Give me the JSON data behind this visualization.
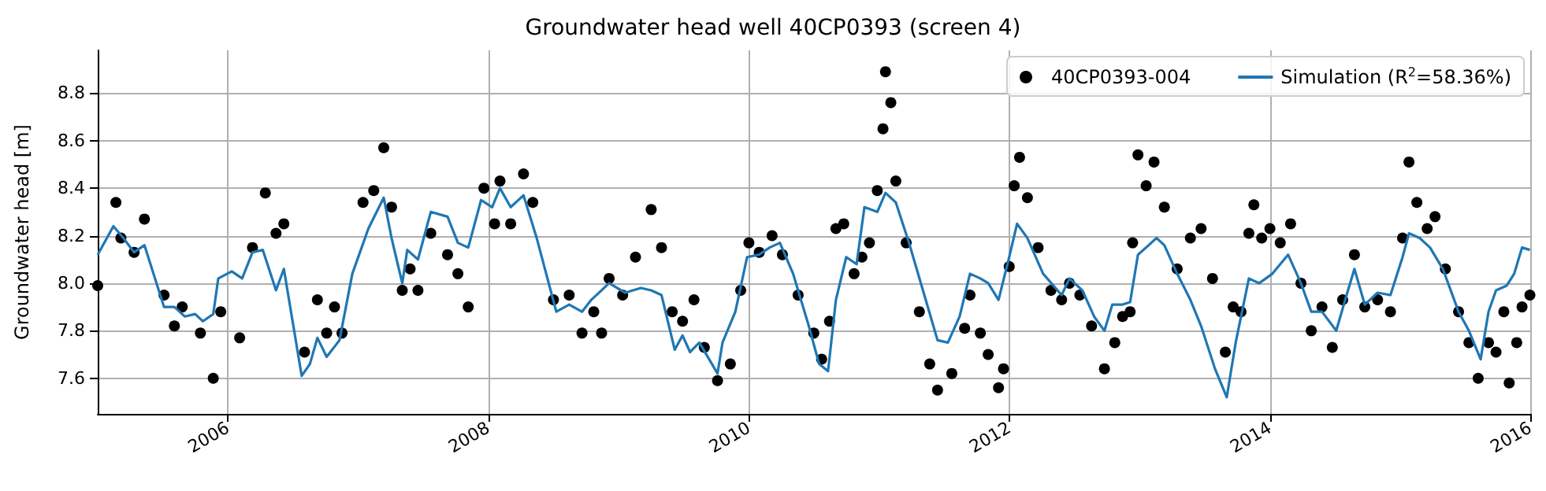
{
  "chart_data": {
    "type": "line",
    "title": "Groundwater head well 40CP0393 (screen 4)",
    "ylabel": "Groundwater head [m]",
    "xlim": [
      "2005",
      "2016"
    ],
    "xticks": [
      "2006",
      "2008",
      "2010",
      "2012",
      "2014",
      "2016"
    ],
    "ylim": [
      7.45,
      8.98
    ],
    "yticks": [
      7.6,
      7.8,
      {
        "value": 8,
        "label": "8.0"
      },
      8.2,
      8.4,
      8.6,
      8.8
    ],
    "grid": true,
    "legend": "top right",
    "series": [
      {
        "name": "40CP0393-004",
        "type": "scatter",
        "marker": "circle",
        "color": "#000000",
        "x": [
          "2005-01-01",
          "2005-02-21",
          "2005-03-07",
          "2005-04-13",
          "2005-05-12",
          "2005-07-06",
          "2005-08-04",
          "2005-08-26",
          "2005-10-16",
          "2005-11-21",
          "2005-12-12",
          "2006-02-03",
          "2006-03-11",
          "2006-04-16",
          "2006-05-16",
          "2006-06-07",
          "2006-08-04",
          "2006-09-09",
          "2006-10-05",
          "2006-10-27",
          "2006-11-17",
          "2007-01-15",
          "2007-02-14",
          "2007-03-14",
          "2007-04-05",
          "2007-05-05",
          "2007-05-27",
          "2007-06-18",
          "2007-07-24",
          "2007-09-09",
          "2007-10-08",
          "2007-11-06",
          "2007-12-20",
          "2008-01-19",
          "2008-02-03",
          "2008-03-04",
          "2008-04-09",
          "2008-05-05",
          "2008-07-02",
          "2008-08-15",
          "2008-09-20",
          "2008-10-23",
          "2008-11-14",
          "2008-12-05",
          "2009-01-12",
          "2009-02-17",
          "2009-04-02",
          "2009-05-01",
          "2009-05-31",
          "2009-06-29",
          "2009-07-31",
          "2009-08-29",
          "2009-10-05",
          "2009-11-10",
          "2009-12-09",
          "2010-01-01",
          "2010-01-30",
          "2010-03-07",
          "2010-04-05",
          "2010-05-19",
          "2010-07-02",
          "2010-07-24",
          "2010-08-15",
          "2010-09-02",
          "2010-09-24",
          "2010-10-23",
          "2010-11-14",
          "2010-12-05",
          "2010-12-27",
          "2011-01-12",
          "2011-01-19",
          "2011-02-03",
          "2011-02-17",
          "2011-03-18",
          "2011-04-24",
          "2011-05-23",
          "2011-06-14",
          "2011-07-24",
          "2011-08-29",
          "2011-09-13",
          "2011-10-12",
          "2011-11-03",
          "2011-12-02",
          "2011-12-16",
          "2012-01-01",
          "2012-01-15",
          "2012-01-30",
          "2012-02-21",
          "2012-03-22",
          "2012-04-27",
          "2012-05-27",
          "2012-06-18",
          "2012-07-17",
          "2012-08-19",
          "2012-09-24",
          "2012-10-23",
          "2012-11-14",
          "2012-12-05",
          "2012-12-12",
          "2012-12-27",
          "2013-01-19",
          "2013-02-10",
          "2013-03-11",
          "2013-04-16",
          "2013-05-23",
          "2013-06-22",
          "2013-07-24",
          "2013-08-29",
          "2013-09-20",
          "2013-10-12",
          "2013-11-03",
          "2013-11-17",
          "2013-12-09",
          "2014-01-01",
          "2014-01-30",
          "2014-02-28",
          "2014-03-29",
          "2014-04-27",
          "2014-05-27",
          "2014-06-25",
          "2014-07-24",
          "2014-08-26",
          "2014-09-24",
          "2014-10-30",
          "2014-12-05",
          "2015-01-08",
          "2015-01-26",
          "2015-02-17",
          "2015-03-18",
          "2015-04-09",
          "2015-05-08",
          "2015-06-14",
          "2015-07-13",
          "2015-08-08",
          "2015-09-06",
          "2015-09-27",
          "2015-10-19",
          "2015-11-03",
          "2015-11-24",
          "2015-12-09",
          "2015-12-31"
        ],
        "values": [
          7.99,
          8.34,
          8.19,
          8.13,
          8.27,
          7.95,
          7.82,
          7.9,
          7.79,
          7.6,
          7.88,
          7.77,
          8.15,
          8.38,
          8.21,
          8.25,
          7.71,
          7.93,
          7.79,
          7.9,
          7.79,
          8.34,
          8.39,
          8.57,
          8.32,
          7.97,
          8.06,
          7.97,
          8.21,
          8.12,
          8.04,
          7.9,
          8.4,
          8.25,
          8.43,
          8.25,
          8.46,
          8.34,
          7.93,
          7.95,
          7.79,
          7.88,
          7.79,
          8.02,
          7.95,
          8.11,
          8.31,
          8.15,
          7.88,
          7.84,
          7.93,
          7.73,
          7.59,
          7.66,
          7.97,
          8.17,
          8.13,
          8.2,
          8.12,
          7.95,
          7.79,
          7.68,
          7.84,
          8.23,
          8.25,
          8.04,
          8.11,
          8.17,
          8.39,
          8.65,
          8.89,
          8.76,
          8.43,
          8.17,
          7.88,
          7.66,
          7.55,
          7.62,
          7.81,
          7.95,
          7.79,
          7.7,
          7.56,
          7.64,
          8.07,
          8.41,
          8.53,
          8.36,
          8.15,
          7.97,
          7.93,
          8.0,
          7.95,
          7.82,
          7.64,
          7.75,
          7.86,
          7.88,
          8.17,
          8.54,
          8.41,
          8.51,
          8.32,
          8.06,
          8.19,
          8.23,
          8.02,
          7.71,
          7.9,
          7.88,
          8.21,
          8.33,
          8.19,
          8.23,
          8.17,
          8.25,
          8.0,
          7.8,
          7.9,
          7.73,
          7.93,
          8.12,
          7.9,
          7.93,
          7.88,
          8.19,
          8.51,
          8.34,
          8.23,
          8.28,
          8.06,
          7.88,
          7.75,
          7.6,
          7.75,
          7.71,
          7.88,
          7.58,
          7.75,
          7.9,
          7.95
        ]
      },
      {
        "name": "Simulation (R$^{2}$=58.36%)",
        "color": "#1f77b4",
        "x": [
          "2005-01-01",
          "2005-02-14",
          "2005-03-14",
          "2005-04-13",
          "2005-05-12",
          "2005-07-06",
          "2005-08-04",
          "2005-09-02",
          "2005-10-01",
          "2005-10-23",
          "2005-11-21",
          "2005-12-05",
          "2006-01-12",
          "2006-02-10",
          "2006-03-11",
          "2006-04-09",
          "2006-05-16",
          "2006-06-07",
          "2006-07-27",
          "2006-08-19",
          "2006-09-09",
          "2006-10-05",
          "2006-11-10",
          "2006-12-16",
          "2007-01-30",
          "2007-03-14",
          "2007-04-05",
          "2007-05-05",
          "2007-05-19",
          "2007-06-18",
          "2007-07-24",
          "2007-09-09",
          "2007-10-08",
          "2007-11-06",
          "2007-12-12",
          "2008-01-12",
          "2008-02-03",
          "2008-03-04",
          "2008-04-09",
          "2008-05-16",
          "2008-07-10",
          "2008-08-15",
          "2008-09-20",
          "2008-10-16",
          "2008-12-05",
          "2009-01-19",
          "2009-03-04",
          "2009-04-02",
          "2009-05-01",
          "2009-06-07",
          "2009-06-29",
          "2009-07-20",
          "2009-08-15",
          "2009-10-05",
          "2009-10-19",
          "2009-11-24",
          "2009-12-27",
          "2010-01-30",
          "2010-02-28",
          "2010-03-29",
          "2010-05-05",
          "2010-06-18",
          "2010-07-17",
          "2010-08-11",
          "2010-09-02",
          "2010-10-01",
          "2010-10-30",
          "2010-11-21",
          "2010-12-27",
          "2011-01-19",
          "2011-02-17",
          "2011-03-26",
          "2011-05-08",
          "2011-06-14",
          "2011-07-13",
          "2011-08-15",
          "2011-09-13",
          "2011-10-12",
          "2011-11-03",
          "2011-12-02",
          "2012-01-01",
          "2012-01-23",
          "2012-02-21",
          "2012-04-05",
          "2012-05-27",
          "2012-06-18",
          "2012-07-24",
          "2012-08-26",
          "2012-09-24",
          "2012-10-16",
          "2012-11-14",
          "2012-12-05",
          "2012-12-27",
          "2013-01-26",
          "2013-02-17",
          "2013-03-11",
          "2013-04-16",
          "2013-05-23",
          "2013-06-22",
          "2013-07-31",
          "2013-09-02",
          "2013-09-27",
          "2013-11-03",
          "2013-12-02",
          "2014-01-08",
          "2014-02-21",
          "2014-03-29",
          "2014-04-27",
          "2014-05-27",
          "2014-07-06",
          "2014-08-04",
          "2014-08-26",
          "2014-09-24",
          "2014-10-30",
          "2014-12-05",
          "2015-01-08",
          "2015-01-26",
          "2015-02-25",
          "2015-03-26",
          "2015-05-01",
          "2015-06-14",
          "2015-07-13",
          "2015-08-15",
          "2015-09-06",
          "2015-09-27",
          "2015-10-27",
          "2015-11-17",
          "2015-12-09",
          "2015-12-31"
        ],
        "values": [
          8.12,
          8.24,
          8.19,
          8.13,
          8.16,
          7.9,
          7.9,
          7.86,
          7.87,
          7.84,
          7.87,
          8.02,
          8.05,
          8.02,
          8.13,
          8.14,
          7.97,
          8.06,
          7.61,
          7.66,
          7.77,
          7.69,
          7.76,
          8.04,
          8.23,
          8.36,
          8.19,
          8.0,
          8.14,
          8.1,
          8.3,
          8.28,
          8.17,
          8.15,
          8.35,
          8.32,
          8.4,
          8.32,
          8.37,
          8.19,
          7.88,
          7.91,
          7.88,
          7.93,
          8.0,
          7.96,
          7.98,
          7.97,
          7.95,
          7.72,
          7.78,
          7.71,
          7.75,
          7.62,
          7.75,
          7.88,
          8.11,
          8.12,
          8.15,
          8.17,
          8.04,
          7.82,
          7.66,
          7.63,
          7.93,
          8.11,
          8.08,
          8.32,
          8.3,
          8.38,
          8.34,
          8.17,
          7.95,
          7.76,
          7.75,
          7.86,
          8.04,
          8.02,
          8.0,
          7.93,
          8.11,
          8.25,
          8.19,
          8.04,
          7.95,
          8.02,
          7.97,
          7.86,
          7.8,
          7.91,
          7.91,
          7.92,
          8.12,
          8.16,
          8.19,
          8.16,
          8.04,
          7.93,
          7.82,
          7.64,
          7.52,
          7.75,
          8.02,
          8.0,
          8.04,
          8.12,
          8.0,
          7.88,
          7.88,
          7.8,
          7.95,
          8.06,
          7.91,
          7.96,
          7.95,
          8.11,
          8.21,
          8.19,
          8.15,
          8.06,
          7.88,
          7.8,
          7.68,
          7.88,
          7.97,
          7.99,
          8.04,
          8.15,
          8.14
        ]
      }
    ]
  }
}
